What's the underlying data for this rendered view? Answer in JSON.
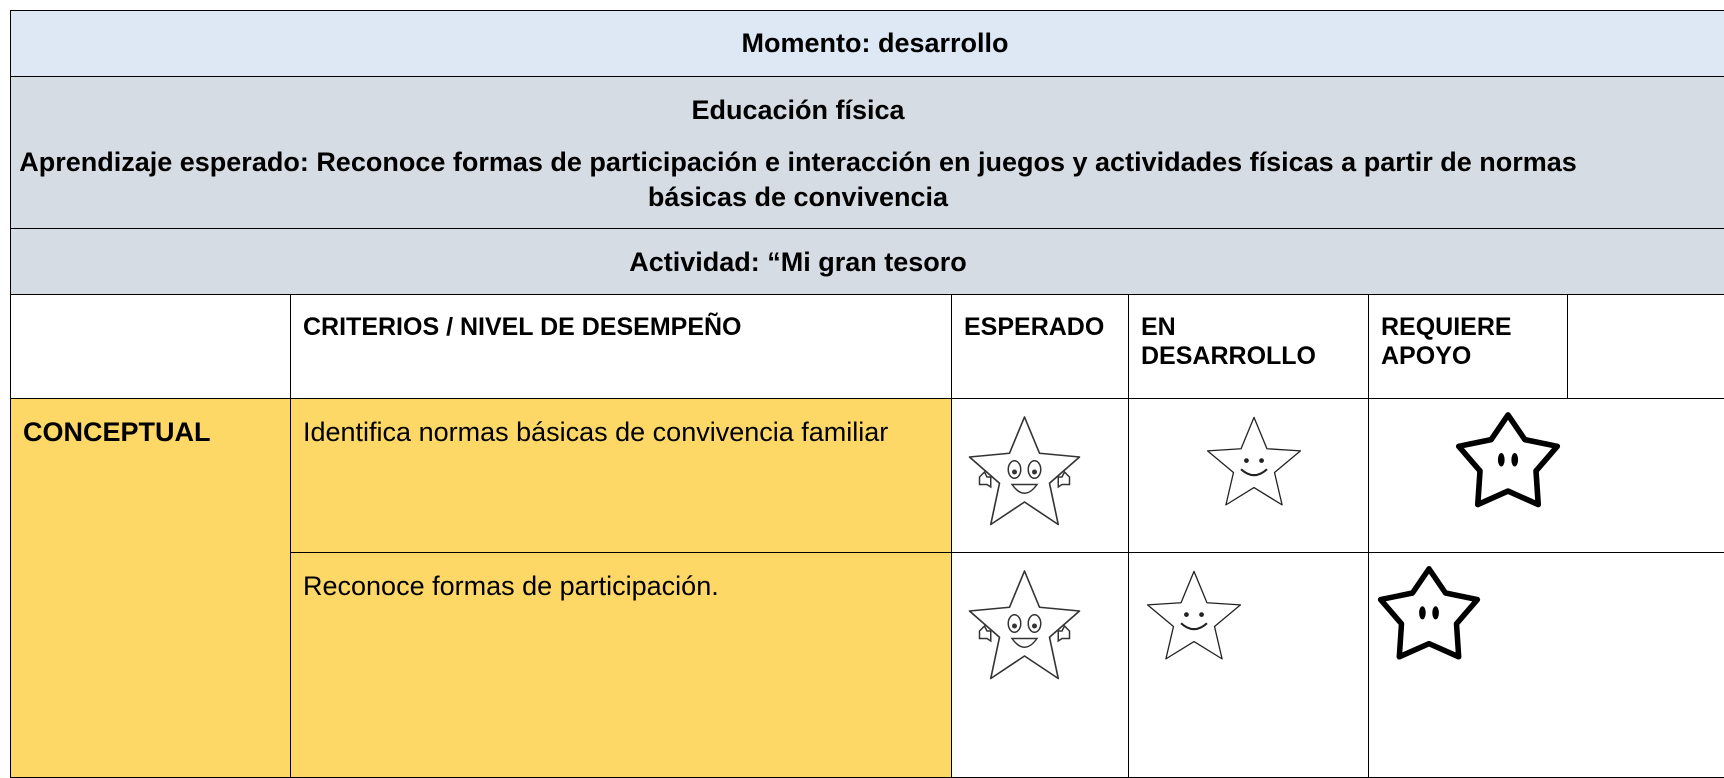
{
  "header": {
    "momento": "Momento: desarrollo",
    "asignatura": "Educación física",
    "aprendizaje": "Aprendizaje esperado: Reconoce formas de participación e interacción en juegos y actividades físicas a partir de normas básicas de convivencia",
    "actividad": "Actividad: “Mi gran tesoro"
  },
  "table": {
    "columns": [
      "CRITERIOS / NIVEL DE DESEMPEÑO",
      "ESPERADO",
      "EN DESARROLLO",
      "REQUIERE APOYO"
    ],
    "rows": [
      {
        "category": "CONCEPTUAL",
        "criteria": [
          "Identifica normas básicas de convivencia familiar",
          "Reconoce formas de participación."
        ]
      }
    ]
  }
}
